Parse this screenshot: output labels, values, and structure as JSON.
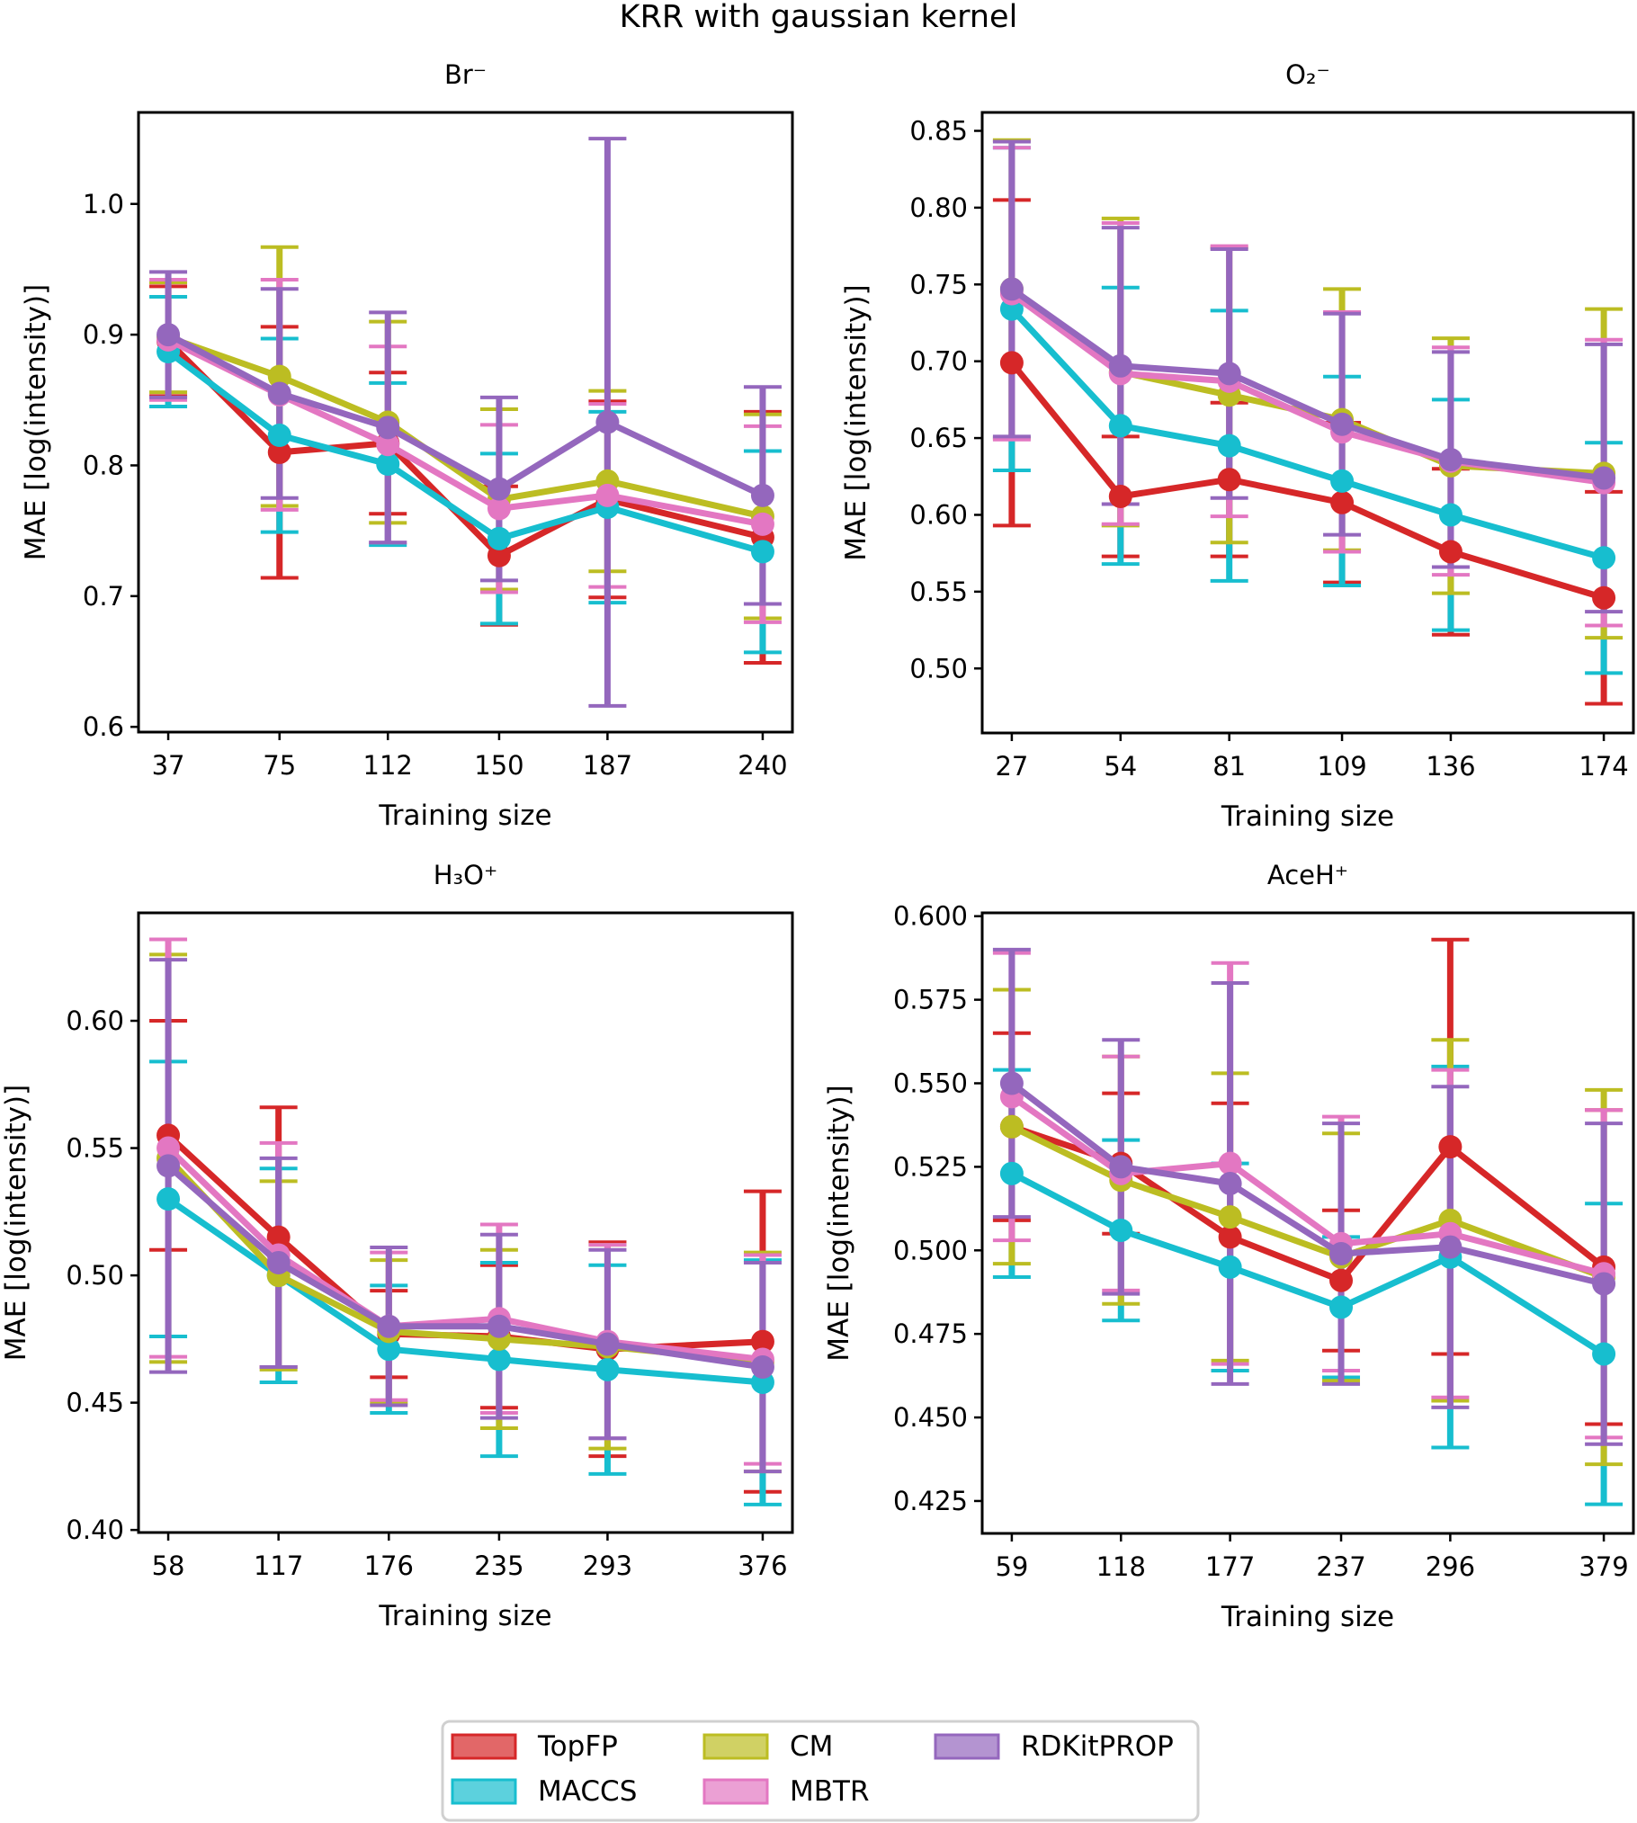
{
  "chart_data": {
    "type": "line",
    "title": "KRR with gaussian kernel",
    "legend": {
      "placement": "bottom-center",
      "columns": 3,
      "entries": [
        {
          "name": "TopFP",
          "color": "#d62728"
        },
        {
          "name": "MACCS",
          "color": "#17becf"
        },
        {
          "name": "CM",
          "color": "#bcbd22"
        },
        {
          "name": "MBTR",
          "color": "#e377c2"
        },
        {
          "name": "RDKitPROP",
          "color": "#9467bd"
        }
      ]
    },
    "panels": [
      {
        "title": "Br⁻",
        "xlabel": "Training size",
        "ylabel": "MAE [log(intensity)]",
        "x": [
          37,
          75,
          112,
          150,
          187,
          240
        ],
        "xticks": [
          "37",
          "75",
          "112",
          "150",
          "187",
          "240"
        ],
        "yticks": [
          "0.6",
          "0.7",
          "0.8",
          "0.9",
          "1.0"
        ],
        "ytick_values": [
          0.6,
          0.7,
          0.8,
          0.9,
          1.0
        ],
        "xlim": [
          26.85,
          250.15
        ],
        "ylim": [
          0.596,
          1.07
        ],
        "grid": false,
        "series": [
          {
            "name": "TopFP",
            "values": [
              0.895,
              0.81,
              0.817,
              0.731,
              0.774,
              0.745
            ],
            "err": [
              0.042,
              0.096,
              0.054,
              0.053,
              0.075,
              0.096
            ]
          },
          {
            "name": "MACCS",
            "values": [
              0.887,
              0.823,
              0.801,
              0.744,
              0.768,
              0.734
            ],
            "err": [
              0.042,
              0.074,
              0.062,
              0.065,
              0.073,
              0.077
            ]
          },
          {
            "name": "CM",
            "values": [
              0.898,
              0.868,
              0.833,
              0.774,
              0.788,
              0.761
            ],
            "err": [
              0.042,
              0.099,
              0.077,
              0.069,
              0.069,
              0.078
            ]
          },
          {
            "name": "MBTR",
            "values": [
              0.896,
              0.854,
              0.816,
              0.767,
              0.777,
              0.755
            ],
            "err": [
              0.046,
              0.088,
              0.075,
              0.064,
              0.07,
              0.075
            ]
          },
          {
            "name": "RDKitPROP",
            "values": [
              0.9,
              0.855,
              0.829,
              0.782,
              0.833,
              0.777
            ],
            "err": [
              0.048,
              0.08,
              0.088,
              0.07,
              0.217,
              0.083
            ]
          }
        ]
      },
      {
        "title": "O₂⁻",
        "xlabel": "Training size",
        "ylabel": "MAE [log(intensity)]",
        "x": [
          27,
          54,
          81,
          109,
          136,
          174
        ],
        "xticks": [
          "27",
          "54",
          "81",
          "109",
          "136",
          "174"
        ],
        "yticks": [
          "0.50",
          "0.55",
          "0.60",
          "0.65",
          "0.70",
          "0.75",
          "0.80",
          "0.85"
        ],
        "ytick_values": [
          0.5,
          0.55,
          0.6,
          0.65,
          0.7,
          0.75,
          0.8,
          0.85
        ],
        "xlim": [
          19.65,
          181.35
        ],
        "ylim": [
          0.458,
          0.862
        ],
        "grid": false,
        "series": [
          {
            "name": "TopFP",
            "values": [
              0.699,
              0.612,
              0.623,
              0.608,
              0.576,
              0.546
            ],
            "err": [
              0.106,
              0.039,
              0.05,
              0.052,
              0.054,
              0.069
            ]
          },
          {
            "name": "MACCS",
            "values": [
              0.734,
              0.658,
              0.645,
              0.622,
              0.6,
              0.572
            ],
            "err": [
              0.105,
              0.09,
              0.088,
              0.068,
              0.075,
              0.075
            ]
          },
          {
            "name": "CM",
            "values": [
              0.747,
              0.693,
              0.678,
              0.662,
              0.632,
              0.627
            ],
            "err": [
              0.097,
              0.1,
              0.096,
              0.085,
              0.083,
              0.107
            ]
          },
          {
            "name": "MBTR",
            "values": [
              0.744,
              0.692,
              0.687,
              0.654,
              0.635,
              0.621
            ],
            "err": [
              0.095,
              0.098,
              0.088,
              0.078,
              0.074,
              0.093
            ]
          },
          {
            "name": "RDKitPROP",
            "values": [
              0.747,
              0.697,
              0.692,
              0.659,
              0.636,
              0.624
            ],
            "err": [
              0.096,
              0.09,
              0.081,
              0.072,
              0.07,
              0.087
            ]
          }
        ]
      },
      {
        "title": "H₃O⁺",
        "xlabel": "Training size",
        "ylabel": "MAE [log(intensity)]",
        "x": [
          58,
          117,
          176,
          235,
          293,
          376
        ],
        "xticks": [
          "58",
          "117",
          "176",
          "235",
          "293",
          "376"
        ],
        "yticks": [
          "0.40",
          "0.45",
          "0.50",
          "0.55",
          "0.60"
        ],
        "ytick_values": [
          0.4,
          0.45,
          0.5,
          0.55,
          0.6
        ],
        "xlim": [
          42.1,
          391.9
        ],
        "ylim": [
          0.399,
          0.6424
        ],
        "grid": false,
        "series": [
          {
            "name": "TopFP",
            "values": [
              0.555,
              0.515,
              0.477,
              0.476,
              0.471,
              0.474
            ],
            "err": [
              0.045,
              0.051,
              0.017,
              0.028,
              0.042,
              0.059
            ]
          },
          {
            "name": "MACCS",
            "values": [
              0.53,
              0.5,
              0.471,
              0.467,
              0.463,
              0.458
            ],
            "err": [
              0.054,
              0.042,
              0.025,
              0.038,
              0.041,
              0.048
            ]
          },
          {
            "name": "CM",
            "values": [
              0.546,
              0.5,
              0.478,
              0.475,
              0.472,
              0.466
            ],
            "err": [
              0.08,
              0.037,
              0.028,
              0.035,
              0.04,
              0.043
            ]
          },
          {
            "name": "MBTR",
            "values": [
              0.55,
              0.508,
              0.48,
              0.483,
              0.474,
              0.467
            ],
            "err": [
              0.082,
              0.044,
              0.029,
              0.037,
              0.038,
              0.041
            ]
          },
          {
            "name": "RDKitPROP",
            "values": [
              0.543,
              0.505,
              0.48,
              0.48,
              0.473,
              0.464
            ],
            "err": [
              0.081,
              0.041,
              0.031,
              0.036,
              0.037,
              0.041
            ]
          }
        ]
      },
      {
        "title": "AceH⁺",
        "xlabel": "Training size",
        "ylabel": "MAE [log(intensity)]",
        "x": [
          59,
          118,
          177,
          237,
          296,
          379
        ],
        "xticks": [
          "59",
          "118",
          "177",
          "237",
          "296",
          "379"
        ],
        "yticks": [
          "0.425",
          "0.450",
          "0.475",
          "0.500",
          "0.525",
          "0.550",
          "0.575",
          "0.600"
        ],
        "ytick_values": [
          0.425,
          0.45,
          0.475,
          0.5,
          0.525,
          0.55,
          0.575,
          0.6
        ],
        "xlim": [
          43,
          395
        ],
        "ylim": [
          0.4153,
          0.601
        ],
        "grid": false,
        "series": [
          {
            "name": "TopFP",
            "values": [
              0.537,
              0.526,
              0.504,
              0.491,
              0.531,
              0.495
            ],
            "err": [
              0.028,
              0.021,
              0.04,
              0.021,
              0.062,
              0.047
            ]
          },
          {
            "name": "MACCS",
            "values": [
              0.523,
              0.506,
              0.495,
              0.483,
              0.498,
              0.469
            ],
            "err": [
              0.031,
              0.027,
              0.031,
              0.021,
              0.057,
              0.045
            ]
          },
          {
            "name": "CM",
            "values": [
              0.537,
              0.521,
              0.51,
              0.498,
              0.509,
              0.492
            ],
            "err": [
              0.041,
              0.037,
              0.043,
              0.037,
              0.054,
              0.056
            ]
          },
          {
            "name": "MBTR",
            "values": [
              0.546,
              0.523,
              0.526,
              0.502,
              0.505,
              0.493
            ],
            "err": [
              0.043,
              0.035,
              0.06,
              0.038,
              0.049,
              0.049
            ]
          },
          {
            "name": "RDKitPROP",
            "values": [
              0.55,
              0.525,
              0.52,
              0.499,
              0.501,
              0.49
            ],
            "err": [
              0.04,
              0.038,
              0.06,
              0.039,
              0.048,
              0.048
            ]
          }
        ]
      }
    ]
  }
}
